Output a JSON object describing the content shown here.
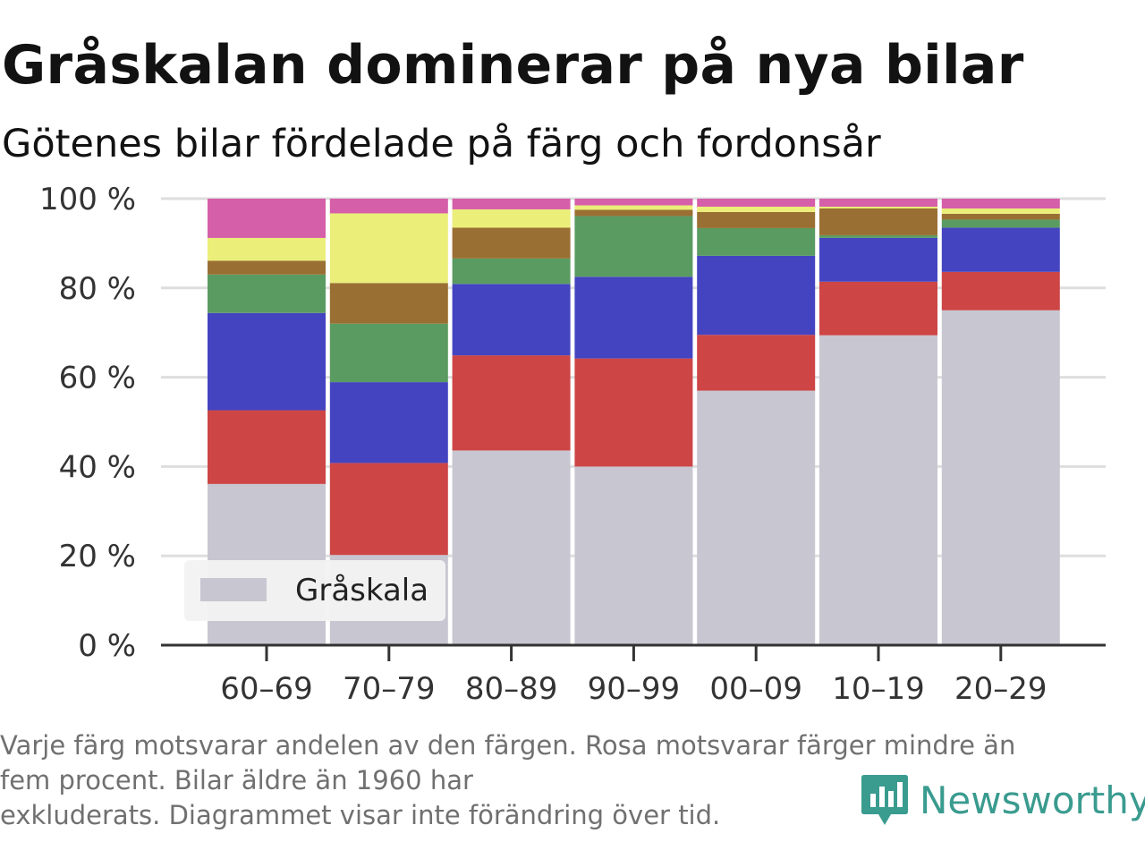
{
  "title": "Gråskalan dominerar på nya bilar",
  "subtitle": "Götenes bilar fördelade på färg och fordonsår",
  "footnote": {
    "line1": "Varje färg motsvarar andelen av den färgen. Rosa motsvarar färger mindre än",
    "line2": "fem procent. Bilar äldre än 1960 har",
    "line3": "exkluderats. Diagrammet visar inte förändring över tid."
  },
  "brand": {
    "name": "Newsworthy",
    "color": "#3a9b8f"
  },
  "chart_data": {
    "type": "bar",
    "stacked": true,
    "categories": [
      "60–69",
      "70–79",
      "80–89",
      "90–99",
      "00–09",
      "10–19",
      "20–29"
    ],
    "ylim": [
      0,
      100
    ],
    "yticks": [
      0,
      20,
      40,
      60,
      80,
      100
    ],
    "ytick_labels": [
      "0 %",
      "20 %",
      "40 %",
      "60 %",
      "80 %",
      "100 %"
    ],
    "xlabel": "",
    "ylabel": "",
    "grid": true,
    "legend": {
      "position": "bottom-left",
      "entries": [
        "Gråskala"
      ]
    },
    "series": [
      {
        "name": "Gråskala",
        "color": "#c8c6d1",
        "values": [
          36.1,
          20.2,
          43.6,
          40.0,
          57.0,
          69.4,
          75.0
        ]
      },
      {
        "key": "red",
        "color": "#cd4545",
        "values": [
          16.5,
          20.6,
          21.3,
          24.2,
          12.5,
          12.0,
          8.6
        ]
      },
      {
        "key": "blue",
        "color": "#4444c1",
        "values": [
          21.8,
          18.1,
          16.0,
          18.3,
          17.7,
          9.8,
          9.9
        ]
      },
      {
        "key": "green",
        "color": "#5a9b62",
        "values": [
          8.6,
          13.1,
          5.7,
          13.6,
          6.2,
          0.6,
          1.8
        ]
      },
      {
        "key": "brown",
        "color": "#9a6f33",
        "values": [
          3.1,
          9.1,
          6.9,
          1.4,
          3.6,
          6.0,
          1.3
        ]
      },
      {
        "key": "yellow",
        "color": "#ebee79",
        "values": [
          5.1,
          15.6,
          4.1,
          1.0,
          1.2,
          0.4,
          1.2
        ]
      },
      {
        "key": "pink",
        "color": "#d55fa9",
        "values": [
          8.8,
          3.3,
          2.4,
          1.5,
          1.8,
          1.8,
          2.2
        ]
      }
    ]
  }
}
